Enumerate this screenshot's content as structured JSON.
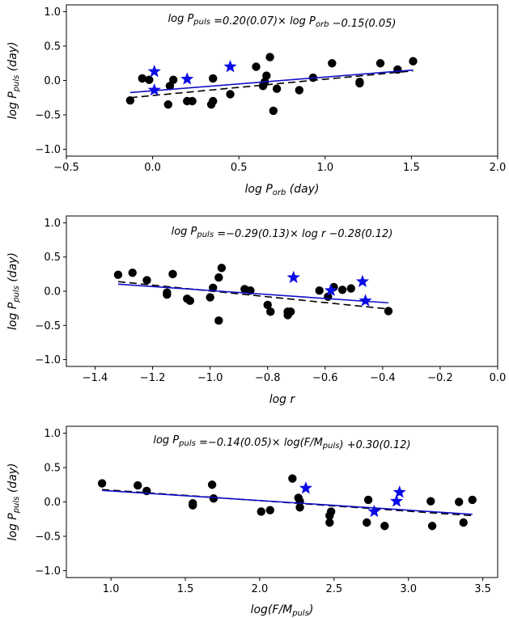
{
  "colors": {
    "circle": "#000000",
    "star": "#0a0ae6",
    "fit_solid": "#1010c8",
    "fit_dashed": "#000000"
  },
  "chart_data": [
    {
      "type": "scatter",
      "xlim": [
        -0.5,
        2.0
      ],
      "ylim": [
        -1.1,
        1.1
      ],
      "xticks": [
        -0.5,
        0.0,
        0.5,
        1.0,
        1.5,
        2.0
      ],
      "yticks": [
        -1.0,
        -0.5,
        0.0,
        0.5,
        1.0
      ],
      "xlabel": {
        "main": "log P",
        "sub": "orb",
        "tail": " (day)"
      },
      "ylabel": {
        "main": "log P",
        "sub": "puls",
        "tail": " (day)"
      },
      "equation": [
        {
          "t": "log P",
          "sub": "puls"
        },
        {
          "t": " =0.20(0.07)× log P",
          "sub": "orb"
        },
        {
          "t": " −0.15(0.05)"
        }
      ],
      "circles": [
        [
          -0.13,
          -0.29
        ],
        [
          -0.06,
          0.03
        ],
        [
          -0.02,
          0.01
        ],
        [
          0.09,
          -0.35
        ],
        [
          0.1,
          -0.08
        ],
        [
          0.12,
          0.01
        ],
        [
          0.2,
          -0.3
        ],
        [
          0.23,
          -0.3
        ],
        [
          0.34,
          -0.35
        ],
        [
          0.35,
          -0.3
        ],
        [
          0.35,
          0.03
        ],
        [
          0.45,
          -0.2
        ],
        [
          0.6,
          0.2
        ],
        [
          0.64,
          -0.08
        ],
        [
          0.65,
          -0.02
        ],
        [
          0.66,
          0.07
        ],
        [
          0.68,
          0.34
        ],
        [
          0.7,
          -0.44
        ],
        [
          0.72,
          -0.12
        ],
        [
          0.85,
          -0.14
        ],
        [
          0.93,
          0.04
        ],
        [
          1.04,
          0.25
        ],
        [
          1.2,
          -0.02
        ],
        [
          1.2,
          -0.04
        ],
        [
          1.32,
          0.25
        ],
        [
          1.42,
          0.16
        ],
        [
          1.51,
          0.28
        ]
      ],
      "stars": [
        [
          0.01,
          0.13
        ],
        [
          0.01,
          -0.14
        ],
        [
          0.2,
          0.02
        ],
        [
          0.45,
          0.2
        ]
      ],
      "fit_solid": [
        [
          -0.13,
          -0.176
        ],
        [
          1.51,
          0.152
        ]
      ],
      "fit_dashed": [
        [
          -0.13,
          -0.25
        ],
        [
          1.51,
          0.14
        ]
      ]
    },
    {
      "type": "scatter",
      "xlim": [
        -1.5,
        0.0
      ],
      "ylim": [
        -1.1,
        1.1
      ],
      "xticks": [
        -1.4,
        -1.2,
        -1.0,
        -0.8,
        -0.6,
        -0.4,
        -0.2,
        0.0
      ],
      "yticks": [
        -1.0,
        -0.5,
        0.0,
        0.5,
        1.0
      ],
      "xlabel": {
        "main": "log r",
        "sub": "",
        "tail": ""
      },
      "ylabel": {
        "main": "log P",
        "sub": "puls",
        "tail": " (day)"
      },
      "equation": [
        {
          "t": "log P",
          "sub": "puls"
        },
        {
          "t": " =−0.29(0.13)× log r −0.28(0.12)"
        }
      ],
      "circles": [
        [
          -1.32,
          0.24
        ],
        [
          -1.27,
          0.27
        ],
        [
          -1.22,
          0.16
        ],
        [
          -1.15,
          -0.02
        ],
        [
          -1.15,
          -0.05
        ],
        [
          -1.13,
          0.25
        ],
        [
          -1.08,
          -0.11
        ],
        [
          -1.07,
          -0.14
        ],
        [
          -1.0,
          -0.09
        ],
        [
          -0.99,
          0.05
        ],
        [
          -0.97,
          -0.43
        ],
        [
          -0.97,
          0.2
        ],
        [
          -0.96,
          0.34
        ],
        [
          -0.88,
          0.03
        ],
        [
          -0.86,
          0.01
        ],
        [
          -0.8,
          -0.2
        ],
        [
          -0.79,
          -0.3
        ],
        [
          -0.73,
          -0.3
        ],
        [
          -0.73,
          -0.35
        ],
        [
          -0.72,
          -0.3
        ],
        [
          -0.62,
          0.01
        ],
        [
          -0.59,
          -0.08
        ],
        [
          -0.57,
          0.06
        ],
        [
          -0.54,
          0.02
        ],
        [
          -0.51,
          0.04
        ],
        [
          -0.38,
          -0.29
        ]
      ],
      "stars": [
        [
          -0.71,
          0.2
        ],
        [
          -0.58,
          0.01
        ],
        [
          -0.47,
          0.14
        ],
        [
          -0.46,
          -0.14
        ]
      ],
      "fit_solid": [
        [
          -1.32,
          0.103
        ],
        [
          -0.38,
          -0.17
        ]
      ],
      "fit_dashed": [
        [
          -1.32,
          0.14
        ],
        [
          -0.38,
          -0.26
        ]
      ]
    },
    {
      "type": "scatter",
      "xlim": [
        0.7,
        3.6
      ],
      "ylim": [
        -1.1,
        1.1
      ],
      "xticks": [
        1.0,
        1.5,
        2.0,
        2.5,
        3.0,
        3.5
      ],
      "yticks": [
        -1.0,
        -0.5,
        0.0,
        0.5,
        1.0
      ],
      "xlabel": {
        "main": "log(F/M",
        "sub": "puls",
        "tail": ")"
      },
      "ylabel": {
        "main": "log P",
        "sub": "puls",
        "tail": " (day)"
      },
      "equation": [
        {
          "t": "log P",
          "sub": "puls"
        },
        {
          "t": " =−0.14(0.05)× log(F/M",
          "sub": "puls"
        },
        {
          "t": ") +0.30(0.12)"
        }
      ],
      "circles": [
        [
          0.94,
          0.27
        ],
        [
          1.18,
          0.24
        ],
        [
          1.24,
          0.16
        ],
        [
          1.55,
          -0.02
        ],
        [
          1.55,
          -0.05
        ],
        [
          1.68,
          0.25
        ],
        [
          1.69,
          0.05
        ],
        [
          2.01,
          -0.14
        ],
        [
          2.07,
          -0.12
        ],
        [
          2.22,
          0.34
        ],
        [
          2.26,
          0.06
        ],
        [
          2.27,
          0.01
        ],
        [
          2.27,
          -0.08
        ],
        [
          2.47,
          -0.2
        ],
        [
          2.47,
          -0.3
        ],
        [
          2.48,
          -0.14
        ],
        [
          2.72,
          -0.3
        ],
        [
          2.73,
          0.03
        ],
        [
          2.84,
          -0.35
        ],
        [
          3.15,
          0.01
        ],
        [
          3.16,
          -0.35
        ],
        [
          3.34,
          0.0
        ],
        [
          3.37,
          -0.3
        ],
        [
          3.43,
          0.03
        ]
      ],
      "stars": [
        [
          2.31,
          0.2
        ],
        [
          2.77,
          -0.14
        ],
        [
          2.92,
          0.01
        ],
        [
          2.94,
          0.14
        ]
      ],
      "fit_solid": [
        [
          0.94,
          0.168
        ],
        [
          3.43,
          -0.18
        ]
      ],
      "fit_dashed": [
        [
          0.94,
          0.18
        ],
        [
          3.43,
          -0.2
        ]
      ]
    }
  ]
}
